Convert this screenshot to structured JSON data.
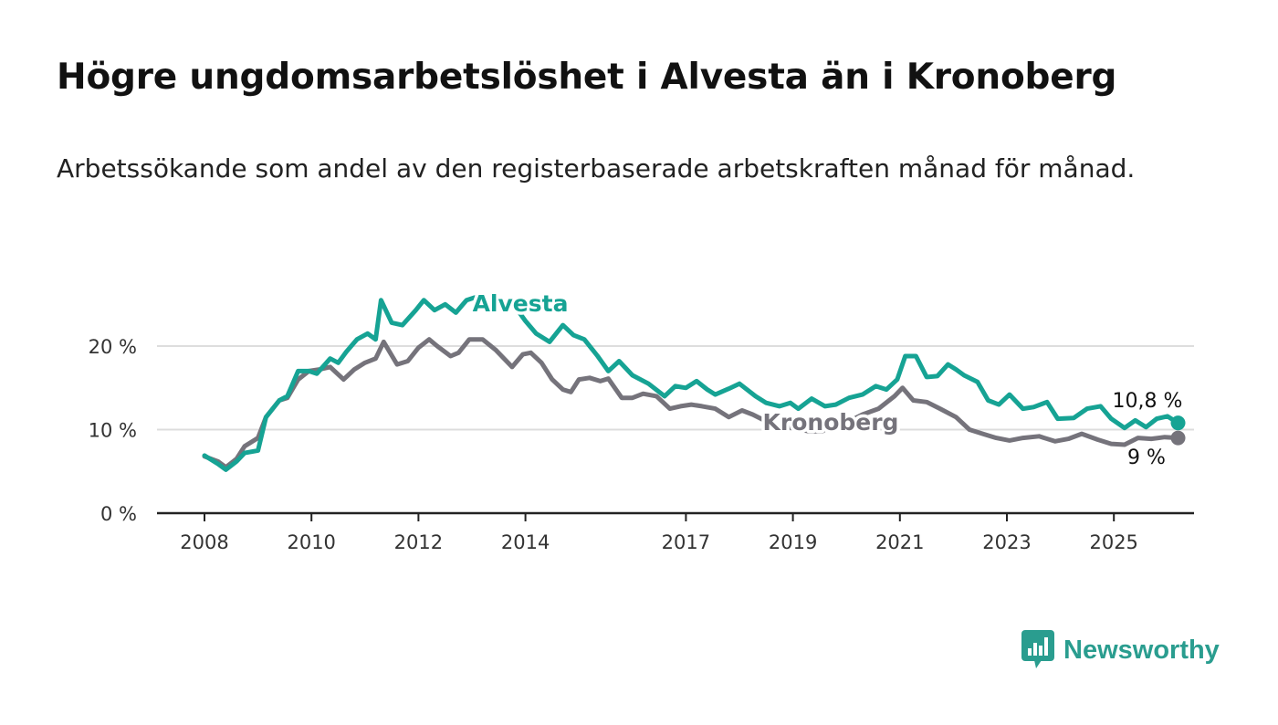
{
  "title": "Högre ungdomsarbetslöshet i Alvesta än i Kronoberg",
  "subtitle": "Arbetssökande som andel av den registerbaserade arbetskraften månad för månad.",
  "brand": {
    "name": "Newsworthy"
  },
  "colors": {
    "alvesta": "#16a394",
    "kronoberg": "#75737b",
    "grid": "#dddddd",
    "axis": "#222222"
  },
  "chart_data": {
    "type": "line",
    "title": "Högre ungdomsarbetslöshet i Alvesta än i Kronoberg",
    "subtitle": "Arbetssökande som andel av den registerbaserade arbetskraften månad för månad.",
    "xlabel": "",
    "ylabel": "",
    "xlim": [
      2008,
      2026.5
    ],
    "ylim": [
      0,
      25
    ],
    "grid": true,
    "x_ticks": [
      "2008",
      "2010",
      "2012",
      "2014",
      "2017",
      "2019",
      "2021",
      "2023",
      "2025"
    ],
    "y_ticks": [
      "0 %",
      "10 %",
      "20 %"
    ],
    "series": [
      {
        "name": "Alvesta",
        "end_label": "10,8 %",
        "points": [
          [
            2008.0,
            6.9
          ],
          [
            2008.25,
            5.9
          ],
          [
            2008.4,
            5.2
          ],
          [
            2008.6,
            6.2
          ],
          [
            2008.75,
            7.2
          ],
          [
            2009.0,
            7.5
          ],
          [
            2009.15,
            11.5
          ],
          [
            2009.4,
            13.5
          ],
          [
            2009.55,
            14.0
          ],
          [
            2009.75,
            17.0
          ],
          [
            2009.95,
            17.0
          ],
          [
            2010.1,
            16.7
          ],
          [
            2010.35,
            18.5
          ],
          [
            2010.5,
            18.0
          ],
          [
            2010.65,
            19.3
          ],
          [
            2010.85,
            20.8
          ],
          [
            2011.05,
            21.5
          ],
          [
            2011.2,
            20.8
          ],
          [
            2011.3,
            25.5
          ],
          [
            2011.5,
            22.8
          ],
          [
            2011.7,
            22.5
          ],
          [
            2011.95,
            24.3
          ],
          [
            2012.1,
            25.5
          ],
          [
            2012.3,
            24.3
          ],
          [
            2012.5,
            25.0
          ],
          [
            2012.7,
            24.0
          ],
          [
            2012.9,
            25.5
          ],
          [
            2013.05,
            25.8
          ],
          [
            2013.3,
            25.2
          ],
          [
            2013.5,
            24.8
          ],
          [
            2013.75,
            25.2
          ],
          [
            2014.0,
            23.0
          ],
          [
            2014.2,
            21.5
          ],
          [
            2014.45,
            20.5
          ],
          [
            2014.7,
            22.5
          ],
          [
            2014.9,
            21.3
          ],
          [
            2015.1,
            20.8
          ],
          [
            2015.35,
            18.8
          ],
          [
            2015.55,
            17.0
          ],
          [
            2015.75,
            18.2
          ],
          [
            2016.0,
            16.5
          ],
          [
            2016.3,
            15.5
          ],
          [
            2016.6,
            14.0
          ],
          [
            2016.8,
            15.2
          ],
          [
            2017.0,
            15.0
          ],
          [
            2017.2,
            15.8
          ],
          [
            2017.4,
            14.8
          ],
          [
            2017.55,
            14.2
          ],
          [
            2017.8,
            14.9
          ],
          [
            2018.0,
            15.5
          ],
          [
            2018.3,
            14.0
          ],
          [
            2018.5,
            13.2
          ],
          [
            2018.75,
            12.8
          ],
          [
            2018.95,
            13.2
          ],
          [
            2019.1,
            12.5
          ],
          [
            2019.35,
            13.7
          ],
          [
            2019.6,
            12.8
          ],
          [
            2019.8,
            13.0
          ],
          [
            2020.05,
            13.8
          ],
          [
            2020.3,
            14.2
          ],
          [
            2020.55,
            15.2
          ],
          [
            2020.75,
            14.8
          ],
          [
            2020.95,
            16.0
          ],
          [
            2021.1,
            18.8
          ],
          [
            2021.3,
            18.8
          ],
          [
            2021.5,
            16.3
          ],
          [
            2021.7,
            16.4
          ],
          [
            2021.9,
            17.8
          ],
          [
            2022.05,
            17.2
          ],
          [
            2022.2,
            16.5
          ],
          [
            2022.45,
            15.7
          ],
          [
            2022.65,
            13.5
          ],
          [
            2022.85,
            13.0
          ],
          [
            2023.05,
            14.2
          ],
          [
            2023.3,
            12.5
          ],
          [
            2023.5,
            12.7
          ],
          [
            2023.75,
            13.3
          ],
          [
            2023.95,
            11.3
          ],
          [
            2024.25,
            11.4
          ],
          [
            2024.5,
            12.5
          ],
          [
            2024.75,
            12.8
          ],
          [
            2024.95,
            11.3
          ],
          [
            2025.2,
            10.2
          ],
          [
            2025.4,
            11.1
          ],
          [
            2025.6,
            10.3
          ],
          [
            2025.8,
            11.3
          ],
          [
            2026.0,
            11.6
          ],
          [
            2026.2,
            10.8
          ]
        ]
      },
      {
        "name": "Kronoberg",
        "end_label": "9 %",
        "points": [
          [
            2008.0,
            6.8
          ],
          [
            2008.25,
            6.2
          ],
          [
            2008.4,
            5.5
          ],
          [
            2008.6,
            6.5
          ],
          [
            2008.75,
            8.0
          ],
          [
            2009.0,
            9.0
          ],
          [
            2009.15,
            11.5
          ],
          [
            2009.4,
            13.5
          ],
          [
            2009.55,
            13.8
          ],
          [
            2009.75,
            16.0
          ],
          [
            2009.95,
            17.0
          ],
          [
            2010.15,
            17.2
          ],
          [
            2010.35,
            17.5
          ],
          [
            2010.6,
            16.0
          ],
          [
            2010.8,
            17.2
          ],
          [
            2011.0,
            18.0
          ],
          [
            2011.2,
            18.5
          ],
          [
            2011.35,
            20.5
          ],
          [
            2011.6,
            17.8
          ],
          [
            2011.8,
            18.2
          ],
          [
            2012.0,
            19.8
          ],
          [
            2012.2,
            20.8
          ],
          [
            2012.35,
            20.0
          ],
          [
            2012.6,
            18.8
          ],
          [
            2012.75,
            19.2
          ],
          [
            2012.95,
            20.8
          ],
          [
            2013.2,
            20.8
          ],
          [
            2013.45,
            19.5
          ],
          [
            2013.6,
            18.5
          ],
          [
            2013.75,
            17.5
          ],
          [
            2013.95,
            19.0
          ],
          [
            2014.1,
            19.2
          ],
          [
            2014.3,
            18.0
          ],
          [
            2014.5,
            16.0
          ],
          [
            2014.7,
            14.8
          ],
          [
            2014.85,
            14.5
          ],
          [
            2015.0,
            16.0
          ],
          [
            2015.2,
            16.2
          ],
          [
            2015.4,
            15.8
          ],
          [
            2015.55,
            16.1
          ],
          [
            2015.8,
            13.8
          ],
          [
            2016.0,
            13.8
          ],
          [
            2016.2,
            14.3
          ],
          [
            2016.45,
            14.0
          ],
          [
            2016.7,
            12.5
          ],
          [
            2016.9,
            12.8
          ],
          [
            2017.1,
            13.0
          ],
          [
            2017.3,
            12.8
          ],
          [
            2017.55,
            12.5
          ],
          [
            2017.8,
            11.5
          ],
          [
            2018.05,
            12.3
          ],
          [
            2018.25,
            11.8
          ],
          [
            2018.5,
            11.0
          ],
          [
            2018.7,
            10.2
          ],
          [
            2018.9,
            10.3
          ],
          [
            2019.3,
            9.8
          ],
          [
            2019.55,
            9.8
          ],
          [
            2019.8,
            10.8
          ],
          [
            2020.05,
            11.0
          ],
          [
            2020.3,
            11.8
          ],
          [
            2020.6,
            12.5
          ],
          [
            2020.9,
            14.0
          ],
          [
            2021.05,
            15.0
          ],
          [
            2021.25,
            13.5
          ],
          [
            2021.5,
            13.3
          ],
          [
            2021.75,
            12.5
          ],
          [
            2022.05,
            11.5
          ],
          [
            2022.3,
            10.0
          ],
          [
            2022.55,
            9.5
          ],
          [
            2022.8,
            9.0
          ],
          [
            2023.05,
            8.7
          ],
          [
            2023.3,
            9.0
          ],
          [
            2023.6,
            9.2
          ],
          [
            2023.9,
            8.6
          ],
          [
            2024.15,
            8.9
          ],
          [
            2024.4,
            9.5
          ],
          [
            2024.7,
            8.8
          ],
          [
            2024.95,
            8.3
          ],
          [
            2025.2,
            8.2
          ],
          [
            2025.45,
            9.0
          ],
          [
            2025.7,
            8.9
          ],
          [
            2025.95,
            9.1
          ],
          [
            2026.2,
            9.0
          ]
        ]
      }
    ]
  }
}
